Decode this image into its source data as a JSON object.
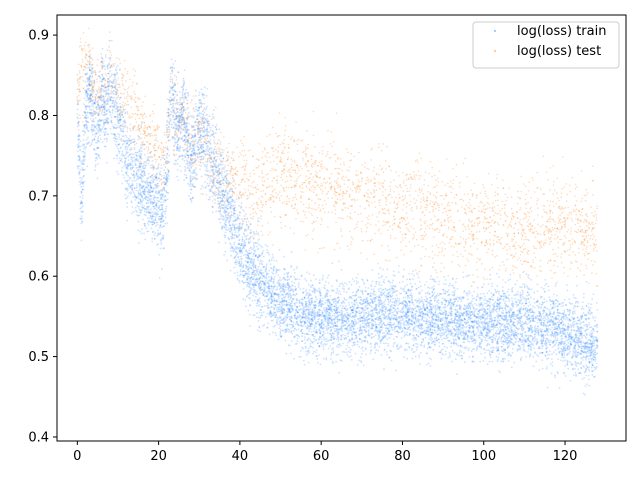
{
  "chart_data": {
    "type": "scatter",
    "title": "",
    "xlabel": "",
    "ylabel": "",
    "xlim": [
      -5,
      135
    ],
    "ylim": [
      0.395,
      0.925
    ],
    "x_ticks": [
      0,
      20,
      40,
      60,
      80,
      100,
      120
    ],
    "y_ticks": [
      0.4,
      0.5,
      0.6,
      0.7,
      0.8,
      0.9
    ],
    "grid": false,
    "legend_position": "top-right",
    "series": [
      {
        "name": "log(loss) train",
        "color": "#1f7fff",
        "x": [
          0,
          1,
          2,
          3,
          4,
          5,
          6,
          7,
          8,
          9,
          10,
          12,
          14,
          16,
          18,
          20,
          21,
          22,
          23,
          24,
          25,
          26,
          27,
          28,
          30,
          32,
          34,
          36,
          38,
          40,
          42,
          44,
          46,
          48,
          50,
          55,
          60,
          65,
          70,
          75,
          80,
          85,
          90,
          95,
          100,
          105,
          110,
          115,
          120,
          125,
          128
        ],
        "y": [
          0.8,
          0.7,
          0.8,
          0.83,
          0.8,
          0.78,
          0.83,
          0.8,
          0.84,
          0.82,
          0.79,
          0.75,
          0.73,
          0.71,
          0.7,
          0.69,
          0.68,
          0.72,
          0.83,
          0.8,
          0.78,
          0.8,
          0.77,
          0.74,
          0.79,
          0.76,
          0.73,
          0.7,
          0.67,
          0.64,
          0.62,
          0.6,
          0.59,
          0.58,
          0.57,
          0.555,
          0.55,
          0.545,
          0.55,
          0.555,
          0.555,
          0.55,
          0.548,
          0.545,
          0.545,
          0.54,
          0.545,
          0.54,
          0.53,
          0.52,
          0.515
        ]
      },
      {
        "name": "log(loss) test",
        "color": "#ff7f0e",
        "x": [
          0,
          1,
          2,
          3,
          4,
          5,
          6,
          7,
          8,
          9,
          10,
          12,
          14,
          16,
          18,
          20,
          21,
          22,
          23,
          24,
          25,
          26,
          27,
          28,
          30,
          32,
          34,
          36,
          38,
          40,
          42,
          44,
          46,
          48,
          50,
          55,
          60,
          65,
          70,
          75,
          80,
          85,
          90,
          95,
          100,
          105,
          110,
          115,
          120,
          125,
          128
        ],
        "y": [
          0.82,
          0.86,
          0.87,
          0.85,
          0.84,
          0.83,
          0.84,
          0.83,
          0.85,
          0.84,
          0.83,
          0.82,
          0.81,
          0.79,
          0.77,
          0.75,
          0.74,
          0.76,
          0.82,
          0.8,
          0.79,
          0.8,
          0.78,
          0.77,
          0.77,
          0.76,
          0.74,
          0.73,
          0.72,
          0.71,
          0.7,
          0.7,
          0.71,
          0.72,
          0.73,
          0.72,
          0.71,
          0.7,
          0.7,
          0.69,
          0.68,
          0.68,
          0.67,
          0.665,
          0.665,
          0.66,
          0.66,
          0.665,
          0.665,
          0.66,
          0.66
        ]
      }
    ]
  }
}
